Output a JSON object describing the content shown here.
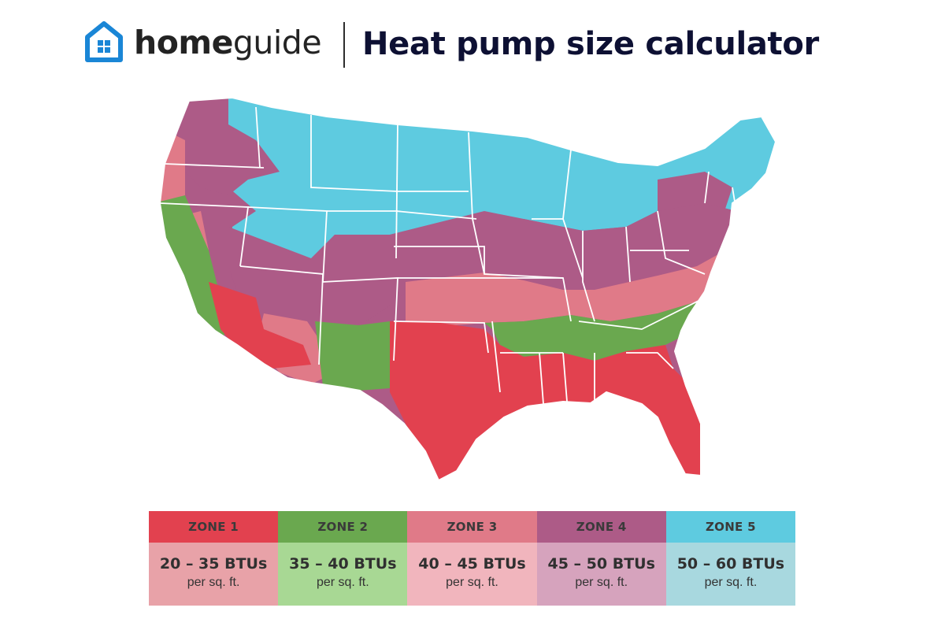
{
  "header": {
    "brand_part1": "home",
    "brand_part2": "guide",
    "title": "Heat pump size calculator",
    "logo_icon": "house-icon",
    "brand_color": "#1a86d6"
  },
  "zones": [
    {
      "label": "ZONE 1",
      "range": "20 – 35 BTUs",
      "unit": "per sq. ft.",
      "color": "#e2414f",
      "light": "#e8a2a8"
    },
    {
      "label": "ZONE 2",
      "range": "35 – 40 BTUs",
      "unit": "per sq. ft.",
      "color": "#6aa84f",
      "light": "#a8d894"
    },
    {
      "label": "ZONE 3",
      "range": "40 – 45 BTUs",
      "unit": "per sq. ft.",
      "color": "#e07a88",
      "light": "#f1b5bd"
    },
    {
      "label": "ZONE 4",
      "range": "45 – 50 BTUs",
      "unit": "per sq. ft.",
      "color": "#ad5b87",
      "light": "#d6a3bd"
    },
    {
      "label": "ZONE 5",
      "range": "50 – 60 BTUs",
      "unit": "per sq. ft.",
      "color": "#5ecbe0",
      "light": "#a8d8df"
    }
  ]
}
